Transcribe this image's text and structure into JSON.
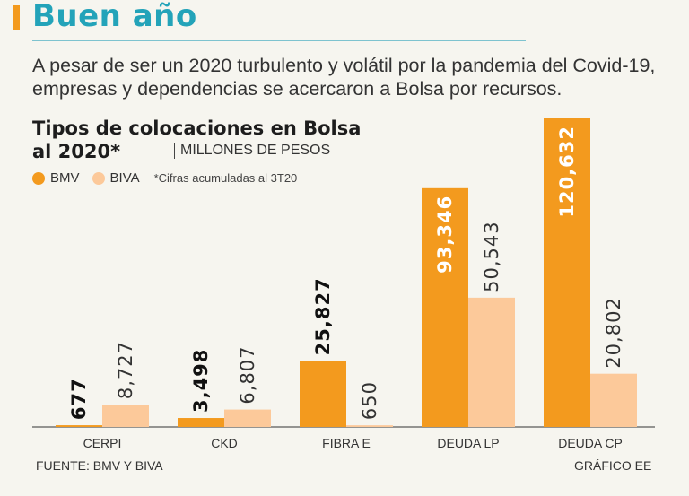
{
  "header": {
    "title": "Buen año",
    "lede": "A pesar de ser un 2020 turbulento y volátil por la pandemia del Covid-19, empresas y dependencias se acercaron a Bolsa por recursos."
  },
  "colors": {
    "bmv": "#f39a1e",
    "biva": "#fcc99a",
    "title": "#23a3b9"
  },
  "legend": {
    "bmv": "BMV",
    "biva": "BIVA",
    "note": "*Cifras acumuladas al 3T20"
  },
  "chart_data": {
    "type": "bar",
    "title_line1": "Tipos de colocaciones en Bolsa",
    "title_line2": "al 2020*",
    "unit": "MILLONES DE PESOS",
    "categories": [
      "CERPI",
      "CKD",
      "FIBRA E",
      "DEUDA LP",
      "DEUDA CP"
    ],
    "series": [
      {
        "name": "BMV",
        "values": [
          677,
          3498,
          25827,
          93346,
          120632
        ],
        "labels": [
          "677",
          "3,498",
          "25,827",
          "93,346",
          "120,632"
        ]
      },
      {
        "name": "BIVA",
        "values": [
          8727,
          6807,
          650,
          50543,
          20802
        ],
        "labels": [
          "8,727",
          "6,807",
          "650",
          "50,543",
          "20,802"
        ]
      }
    ],
    "ylim": [
      0,
      120632
    ]
  },
  "footer": {
    "source": "FUENTE: BMV Y BIVA",
    "credit": "GRÁFICO EE"
  }
}
